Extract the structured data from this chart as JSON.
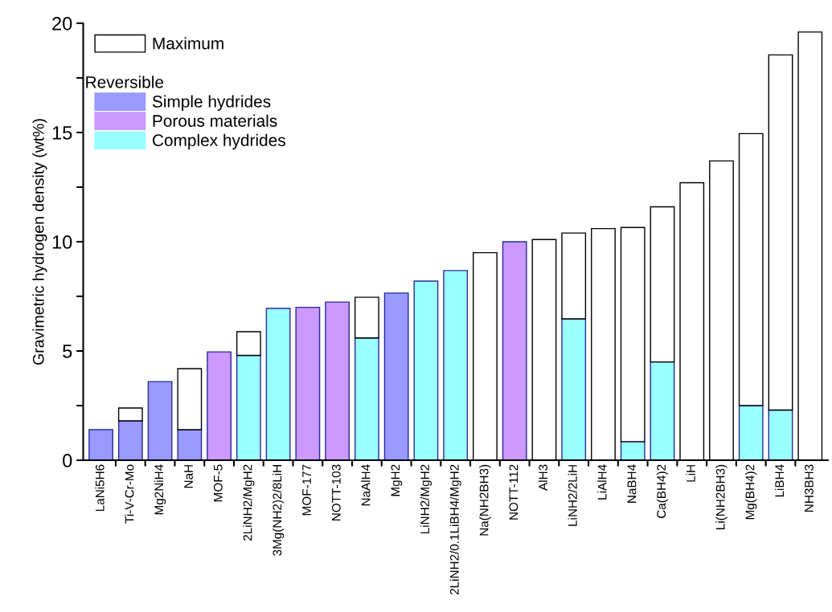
{
  "chart_data": {
    "type": "bar",
    "stacked": true,
    "ylabel": "Gravimetric hydrogen density (wt%)",
    "legend_title": "Reversible",
    "legend": "top left",
    "categories": [
      "LaNi5H6",
      "Ti-V-Cr-Mo",
      "Mg2NiH4",
      "NaH",
      "MOF-5",
      "2LiNH2/MgH2",
      "3Mg(NH2)2/8LiH",
      "MOF-177",
      "NOTT-103",
      "NaAlH4",
      "MgH2",
      "LiNH2/MgH2",
      "2LiNH2/0.1LiBH4/MgH2",
      "Na(NH2BH3)",
      "NOTT-112",
      "AlH3",
      "LiNH2/2LiH",
      "LiAlH4",
      "NaBH4",
      "Ca(BH4)2",
      "LiH",
      "Li(NH2BH3)",
      "Mg(BH4)2",
      "LiBH4",
      "NH3BH3"
    ],
    "series": [
      {
        "name": "Simple hydrides",
        "color": "#9999ff",
        "values": [
          1.4,
          1.8,
          3.6,
          1.4,
          null,
          null,
          null,
          null,
          null,
          null,
          7.65,
          null,
          null,
          null,
          null,
          null,
          null,
          null,
          null,
          null,
          null,
          null,
          null,
          null,
          null
        ]
      },
      {
        "name": "Porous materials",
        "color": "#cc99ff",
        "values": [
          null,
          null,
          null,
          null,
          4.96,
          null,
          null,
          7.0,
          7.24,
          null,
          null,
          null,
          null,
          null,
          10.0,
          null,
          null,
          null,
          null,
          null,
          null,
          null,
          null,
          null,
          null
        ]
      },
      {
        "name": "Complex hydrides",
        "color": "#99ffff",
        "values": [
          null,
          null,
          null,
          null,
          null,
          4.8,
          6.95,
          null,
          null,
          5.6,
          null,
          8.2,
          8.68,
          null,
          null,
          null,
          6.47,
          null,
          0.85,
          4.5,
          null,
          null,
          2.5,
          2.3,
          null
        ]
      },
      {
        "name": "Maximum",
        "color": "#ffffff",
        "values": [
          null,
          0.59,
          null,
          2.79,
          null,
          1.08,
          null,
          null,
          null,
          1.86,
          null,
          null,
          null,
          9.5,
          null,
          10.1,
          3.93,
          10.6,
          9.8,
          7.1,
          12.7,
          13.7,
          12.45,
          16.25,
          19.6
        ]
      }
    ],
    "ylim": [
      0,
      20
    ],
    "yticks": [
      0,
      {
        "value": 2.5,
        "label": null
      },
      5,
      {
        "value": 7.5,
        "label": null
      },
      10,
      {
        "value": 12.5,
        "label": null
      },
      15,
      {
        "value": 17.5,
        "label": null
      },
      20
    ],
    "grid": false
  }
}
